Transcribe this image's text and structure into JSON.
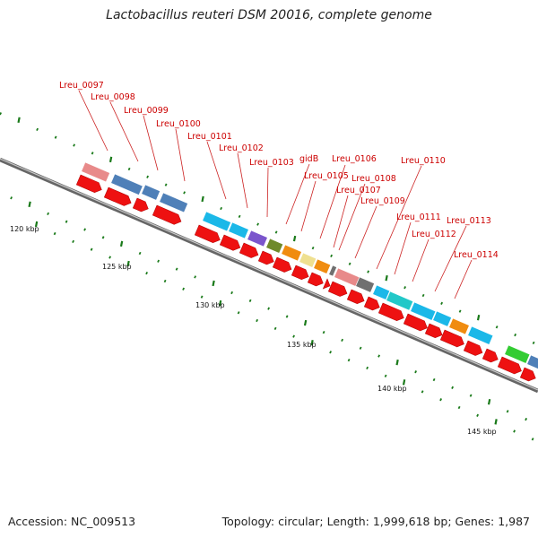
{
  "title": "Lactobacillus reuteri DSM 20016, complete genome",
  "footer": {
    "accession": "Accession: NC_009513",
    "topology": "Topology: circular; Length: 1,999,618 bp; Genes: 1,987"
  },
  "scale_labels": [
    "120 kbp",
    "125 kbp",
    "130 kbp",
    "135 kbp",
    "140 kbp",
    "145 kbp"
  ],
  "gene_labels": [
    "Lreu_0097",
    "Lreu_0098",
    "Lreu_0099",
    "Lreu_0100",
    "Lreu_0101",
    "Lreu_0102",
    "Lreu_0103",
    "gidB",
    "Lreu_0105",
    "Lreu_0106",
    "Lreu_0107",
    "Lreu_0108",
    "Lreu_0109",
    "Lreu_0110",
    "Lreu_0111",
    "Lreu_0112",
    "Lreu_0113",
    "Lreu_0114"
  ],
  "colors": {
    "backbone": "#888888",
    "cds_arrow": "#ee1111",
    "label": "#cc0000",
    "tick": "#1a7a1a",
    "gene_pink": "#e88a8a",
    "gene_steelblue": "#4f80b8",
    "gene_cyan": "#1bb8e8",
    "gene_purple": "#7a55cc",
    "gene_olive": "#6f8a2a",
    "gene_orange": "#f08c10",
    "gene_khaki": "#efe090",
    "gene_gray": "#707070",
    "gene_teal": "#22c8c8",
    "gene_green": "#33cc33"
  }
}
